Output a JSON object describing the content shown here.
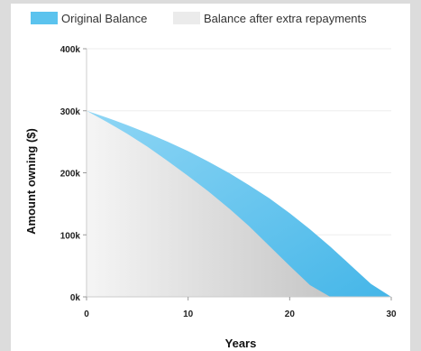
{
  "chart_data": {
    "type": "area",
    "legend": {
      "placement": "top-left",
      "entries": [
        {
          "name": "Original Balance",
          "color": "#5bc3ee"
        },
        {
          "name": "Balance after extra repayments",
          "color": "#ebebeb"
        }
      ]
    },
    "xlabel": "Years",
    "ylabel": "Amount owning ($)",
    "xlim": [
      0,
      30
    ],
    "ylim": [
      0,
      400000
    ],
    "x_ticks": [
      0,
      10,
      20,
      30
    ],
    "x_tick_labels": [
      "0",
      "10",
      "20",
      "30"
    ],
    "y_ticks": [
      0,
      100000,
      200000,
      300000,
      400000
    ],
    "y_tick_labels": [
      "0k",
      "100k",
      "200k",
      "300k",
      "400k"
    ],
    "grid": {
      "horizontal": true,
      "vertical": false
    },
    "series": [
      {
        "name": "Original Balance",
        "color": "#5bc3ee",
        "x": [
          0,
          2,
          4,
          6,
          8,
          10,
          12,
          14,
          16,
          18,
          20,
          22,
          24,
          26,
          28,
          30
        ],
        "values": [
          300000,
          289000,
          277000,
          264000,
          250000,
          235000,
          218000,
          200000,
          180000,
          159000,
          135000,
          109000,
          81000,
          51000,
          21000,
          0
        ]
      },
      {
        "name": "Balance after extra repayments",
        "color": "#ebebeb",
        "x": [
          0,
          2,
          4,
          6,
          8,
          10,
          12,
          14,
          16,
          18,
          20,
          22,
          24
        ],
        "values": [
          300000,
          282000,
          263000,
          242000,
          219000,
          195000,
          170000,
          143000,
          114000,
          82000,
          50000,
          19000,
          0
        ]
      }
    ]
  }
}
